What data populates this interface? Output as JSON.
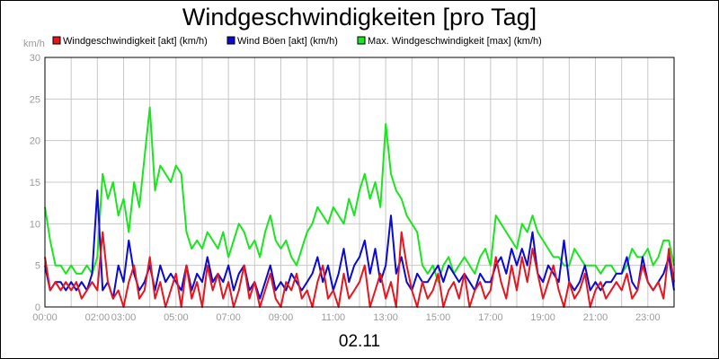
{
  "chart_data": {
    "type": "line",
    "title": "Windgeschwindigkeiten [pro Tag]",
    "ylabel": "km/h",
    "xlabel": "02.11",
    "ylim": [
      0,
      30
    ],
    "xlim": [
      0,
      24
    ],
    "y_ticks": [
      "0",
      "5",
      "10",
      "15",
      "20",
      "25",
      "30"
    ],
    "x_ticks": [
      "00:00",
      "02:00",
      "03:00",
      "05:00",
      "07:00",
      "09:00",
      "11:00",
      "13:00",
      "15:00",
      "17:00",
      "19:00",
      "21:00",
      "23:00"
    ],
    "x_tick_hours": [
      0,
      2,
      3,
      5,
      7,
      9,
      11,
      13,
      15,
      17,
      19,
      21,
      23
    ],
    "grid": true,
    "legend_position": "top",
    "series": [
      {
        "name": "Windgeschwindigkeit [akt] (km/h)",
        "color": "#e8141e",
        "x": [
          0,
          0.2,
          0.4,
          0.6,
          0.8,
          1,
          1.2,
          1.4,
          1.6,
          1.8,
          2,
          2.2,
          2.4,
          2.6,
          2.8,
          3,
          3.2,
          3.4,
          3.6,
          3.8,
          4,
          4.2,
          4.4,
          4.6,
          4.8,
          5,
          5.2,
          5.4,
          5.6,
          5.8,
          6,
          6.2,
          6.4,
          6.6,
          6.8,
          7,
          7.2,
          7.4,
          7.6,
          7.8,
          8,
          8.2,
          8.4,
          8.6,
          8.8,
          9,
          9.2,
          9.4,
          9.6,
          9.8,
          10,
          10.2,
          10.4,
          10.6,
          10.8,
          11,
          11.2,
          11.4,
          11.6,
          11.8,
          12,
          12.2,
          12.4,
          12.6,
          12.8,
          13,
          13.2,
          13.4,
          13.6,
          13.8,
          14,
          14.2,
          14.4,
          14.6,
          14.8,
          15,
          15.2,
          15.4,
          15.6,
          15.8,
          16,
          16.2,
          16.4,
          16.6,
          16.8,
          17,
          17.2,
          17.4,
          17.6,
          17.8,
          18,
          18.2,
          18.4,
          18.6,
          18.8,
          19,
          19.2,
          19.4,
          19.6,
          19.8,
          20,
          20.2,
          20.4,
          20.6,
          20.8,
          21,
          21.2,
          21.4,
          21.6,
          21.8,
          22,
          22.2,
          22.4,
          22.6,
          22.8,
          23,
          23.2,
          23.4,
          23.6,
          23.8,
          24
        ],
        "values": [
          6,
          2,
          3,
          2,
          3,
          2,
          3,
          1,
          2,
          3,
          2,
          9,
          3,
          1,
          2,
          0,
          3,
          5,
          1,
          2,
          6,
          1,
          3,
          0,
          2,
          4,
          0,
          5,
          1,
          3,
          0,
          5,
          2,
          4,
          1,
          3,
          0,
          2,
          5,
          1,
          3,
          0,
          2,
          4,
          1,
          0,
          3,
          2,
          4,
          1,
          2,
          0,
          3,
          5,
          1,
          2,
          0,
          4,
          1,
          2,
          3,
          5,
          0,
          2,
          4,
          1,
          3,
          0,
          9,
          5,
          2,
          0,
          3,
          1,
          2,
          4,
          0,
          2,
          3,
          1,
          4,
          0,
          2,
          3,
          1,
          2,
          6,
          3,
          1,
          5,
          2,
          6,
          3,
          7,
          4,
          1,
          3,
          5,
          2,
          0,
          3,
          1,
          2,
          4,
          0,
          2,
          3,
          1,
          2,
          3,
          2,
          4,
          1,
          2,
          5,
          3,
          2,
          3,
          1,
          7,
          3
        ]
      },
      {
        "name": "Wind Böen [akt] (km/h)",
        "color": "#0a0ad2",
        "x": [
          0,
          0.2,
          0.4,
          0.6,
          0.8,
          1,
          1.2,
          1.4,
          1.6,
          1.8,
          2,
          2.2,
          2.4,
          2.6,
          2.8,
          3,
          3.2,
          3.4,
          3.6,
          3.8,
          4,
          4.2,
          4.4,
          4.6,
          4.8,
          5,
          5.2,
          5.4,
          5.6,
          5.8,
          6,
          6.2,
          6.4,
          6.6,
          6.8,
          7,
          7.2,
          7.4,
          7.6,
          7.8,
          8,
          8.2,
          8.4,
          8.6,
          8.8,
          9,
          9.2,
          9.4,
          9.6,
          9.8,
          10,
          10.2,
          10.4,
          10.6,
          10.8,
          11,
          11.2,
          11.4,
          11.6,
          11.8,
          12,
          12.2,
          12.4,
          12.6,
          12.8,
          13,
          13.2,
          13.4,
          13.6,
          13.8,
          14,
          14.2,
          14.4,
          14.6,
          14.8,
          15,
          15.2,
          15.4,
          15.6,
          15.8,
          16,
          16.2,
          16.4,
          16.6,
          16.8,
          17,
          17.2,
          17.4,
          17.6,
          17.8,
          18,
          18.2,
          18.4,
          18.6,
          18.8,
          19,
          19.2,
          19.4,
          19.6,
          19.8,
          20,
          20.2,
          20.4,
          20.6,
          20.8,
          21,
          21.2,
          21.4,
          21.6,
          21.8,
          22,
          22.2,
          22.4,
          22.6,
          22.8,
          23,
          23.2,
          23.4,
          23.6,
          23.8,
          24
        ],
        "values": [
          5,
          2,
          3,
          3,
          2,
          3,
          2,
          3,
          2,
          4,
          14,
          2,
          3,
          1,
          5,
          3,
          8,
          4,
          2,
          3,
          5,
          2,
          5,
          3,
          4,
          3,
          2,
          5,
          2,
          4,
          3,
          6,
          3,
          4,
          3,
          5,
          2,
          4,
          5,
          2,
          3,
          1,
          3,
          5,
          2,
          3,
          2,
          4,
          3,
          2,
          3,
          4,
          6,
          3,
          5,
          2,
          4,
          7,
          3,
          5,
          6,
          8,
          4,
          7,
          3,
          5,
          11,
          4,
          6,
          3,
          2,
          4,
          3,
          3,
          4,
          5,
          3,
          5,
          4,
          3,
          4,
          3,
          2,
          4,
          3,
          3,
          5,
          6,
          4,
          7,
          5,
          7,
          5,
          9,
          4,
          3,
          5,
          4,
          3,
          8,
          3,
          2,
          3,
          5,
          2,
          3,
          2,
          3,
          3,
          4,
          4,
          6,
          3,
          2,
          6,
          3,
          2,
          3,
          4,
          6,
          2
        ]
      },
      {
        "name": "Max. Windgeschwindigkeit [max] (km/h)",
        "color": "#19e61e",
        "x": [
          0,
          0.2,
          0.4,
          0.6,
          0.8,
          1,
          1.2,
          1.4,
          1.6,
          1.8,
          2,
          2.2,
          2.4,
          2.6,
          2.8,
          3,
          3.2,
          3.4,
          3.6,
          3.8,
          4,
          4.2,
          4.4,
          4.6,
          4.8,
          5,
          5.2,
          5.4,
          5.6,
          5.8,
          6,
          6.2,
          6.4,
          6.6,
          6.8,
          7,
          7.2,
          7.4,
          7.6,
          7.8,
          8,
          8.2,
          8.4,
          8.6,
          8.8,
          9,
          9.2,
          9.4,
          9.6,
          9.8,
          10,
          10.2,
          10.4,
          10.6,
          10.8,
          11,
          11.2,
          11.4,
          11.6,
          11.8,
          12,
          12.2,
          12.4,
          12.6,
          12.8,
          13,
          13.2,
          13.4,
          13.6,
          13.8,
          14,
          14.2,
          14.4,
          14.6,
          14.8,
          15,
          15.2,
          15.4,
          15.6,
          15.8,
          16,
          16.2,
          16.4,
          16.6,
          16.8,
          17,
          17.2,
          17.4,
          17.6,
          17.8,
          18,
          18.2,
          18.4,
          18.6,
          18.8,
          19,
          19.2,
          19.4,
          19.6,
          19.8,
          20,
          20.2,
          20.4,
          20.6,
          20.8,
          21,
          21.2,
          21.4,
          21.6,
          21.8,
          22,
          22.2,
          22.4,
          22.6,
          22.8,
          23,
          23.2,
          23.4,
          23.6,
          23.8,
          24
        ],
        "values": [
          12,
          8,
          5,
          5,
          4,
          5,
          4,
          4,
          5,
          4,
          6,
          16,
          13,
          15,
          11,
          13,
          9,
          15,
          12,
          18,
          24,
          14,
          17,
          16,
          15,
          17,
          16,
          9,
          7,
          8,
          7,
          9,
          8,
          7,
          9,
          6,
          8,
          10,
          9,
          7,
          8,
          6,
          9,
          11,
          8,
          7,
          8,
          6,
          5,
          7,
          9,
          10,
          12,
          11,
          10,
          12,
          11,
          10,
          13,
          11,
          14,
          16,
          13,
          15,
          12,
          22,
          16,
          14,
          13,
          11,
          10,
          9,
          5,
          4,
          5,
          3,
          5,
          6,
          4,
          5,
          6,
          5,
          4,
          6,
          7,
          5,
          11,
          10,
          9,
          8,
          7,
          10,
          9,
          11,
          9,
          8,
          7,
          6,
          6,
          5,
          5,
          7,
          6,
          5,
          5,
          5,
          4,
          5,
          5,
          4,
          4,
          5,
          7,
          6,
          6,
          7,
          5,
          6,
          8,
          8,
          5
        ]
      }
    ]
  }
}
